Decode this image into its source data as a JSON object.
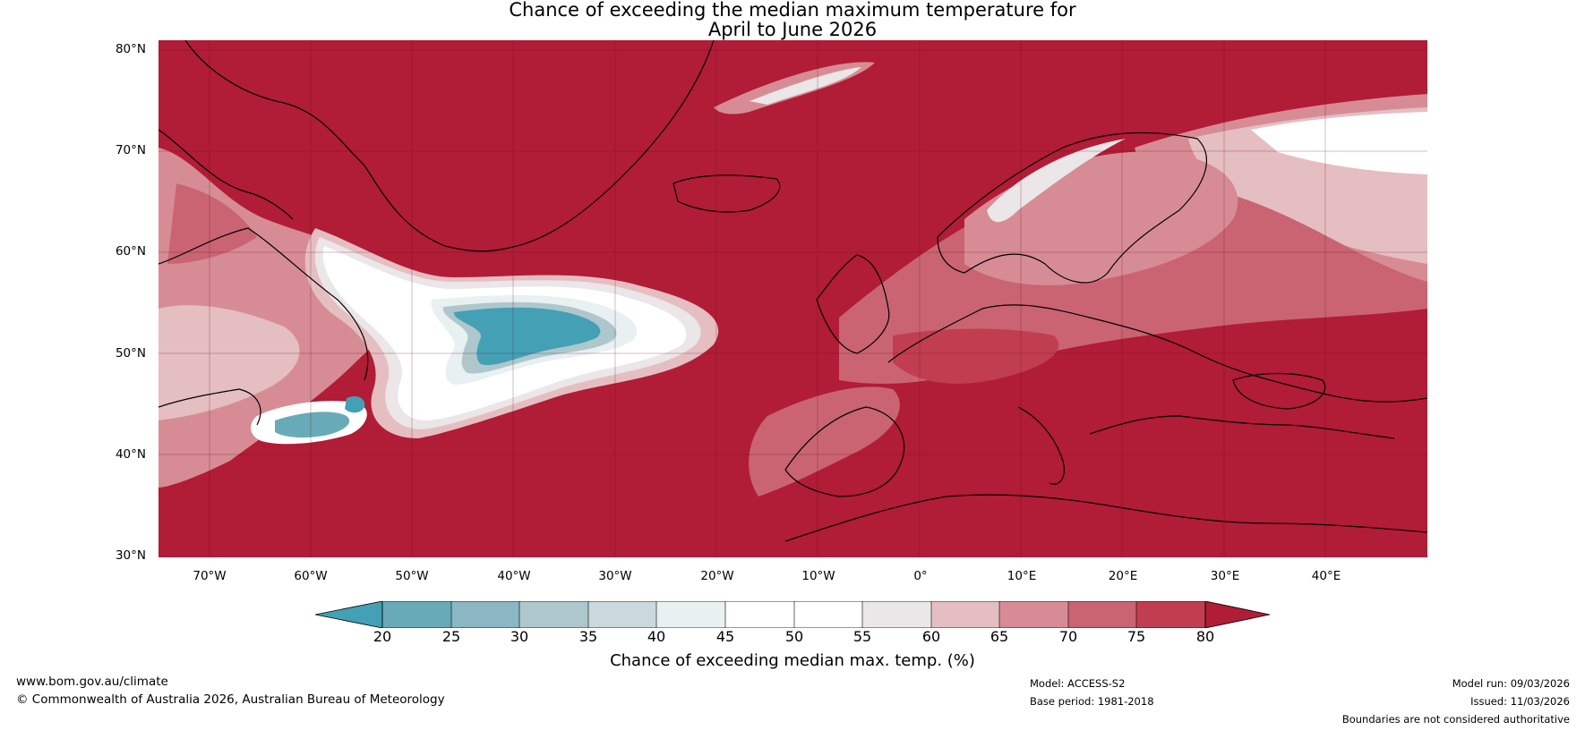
{
  "title": {
    "line1": "Chance of exceeding the median maximum temperature for",
    "line2": "April to June 2026"
  },
  "map": {
    "region": "North Atlantic and Europe",
    "lon_range": [
      -75,
      50
    ],
    "lat_range": [
      30,
      81
    ],
    "lat_labels": [
      "80°N",
      "70°N",
      "60°N",
      "50°N",
      "40°N",
      "30°N"
    ],
    "lon_labels": [
      "70°W",
      "60°W",
      "50°W",
      "40°W",
      "30°W",
      "20°W",
      "10°W",
      "0°",
      "10°E",
      "20°E",
      "30°E",
      "40°E"
    ],
    "colors": {
      "c80": "#b11c36",
      "c75": "#c13e50",
      "c70": "#ca6472",
      "c65": "#d78c95",
      "c60": "#e5bec2",
      "c55": "#ebe6e7",
      "c50": "#ffffff",
      "c45": "#ffffff",
      "c40": "#e8f0f1",
      "c35": "#ccd9dc",
      "c30": "#aec7cc",
      "c25": "#8bb6c3",
      "c20": "#68aab8",
      "c15": "#44a0b4"
    }
  },
  "colorbar": {
    "ticks": [
      "20",
      "25",
      "30",
      "35",
      "40",
      "45",
      "50",
      "55",
      "60",
      "65",
      "70",
      "75",
      "80"
    ],
    "label": "Chance of exceeding median max. temp. (%)"
  },
  "footer": {
    "url": "www.bom.gov.au/climate",
    "copyright": "© Commonwealth of Australia 2026, Australian Bureau of Meteorology",
    "model": "Model: ACCESS-S2",
    "base_period": "Base period: 1981-2018",
    "model_run": "Model run: 09/03/2026",
    "issued": "Issued: 11/03/2026",
    "disclaimer": "Boundaries are not considered authoritative"
  }
}
